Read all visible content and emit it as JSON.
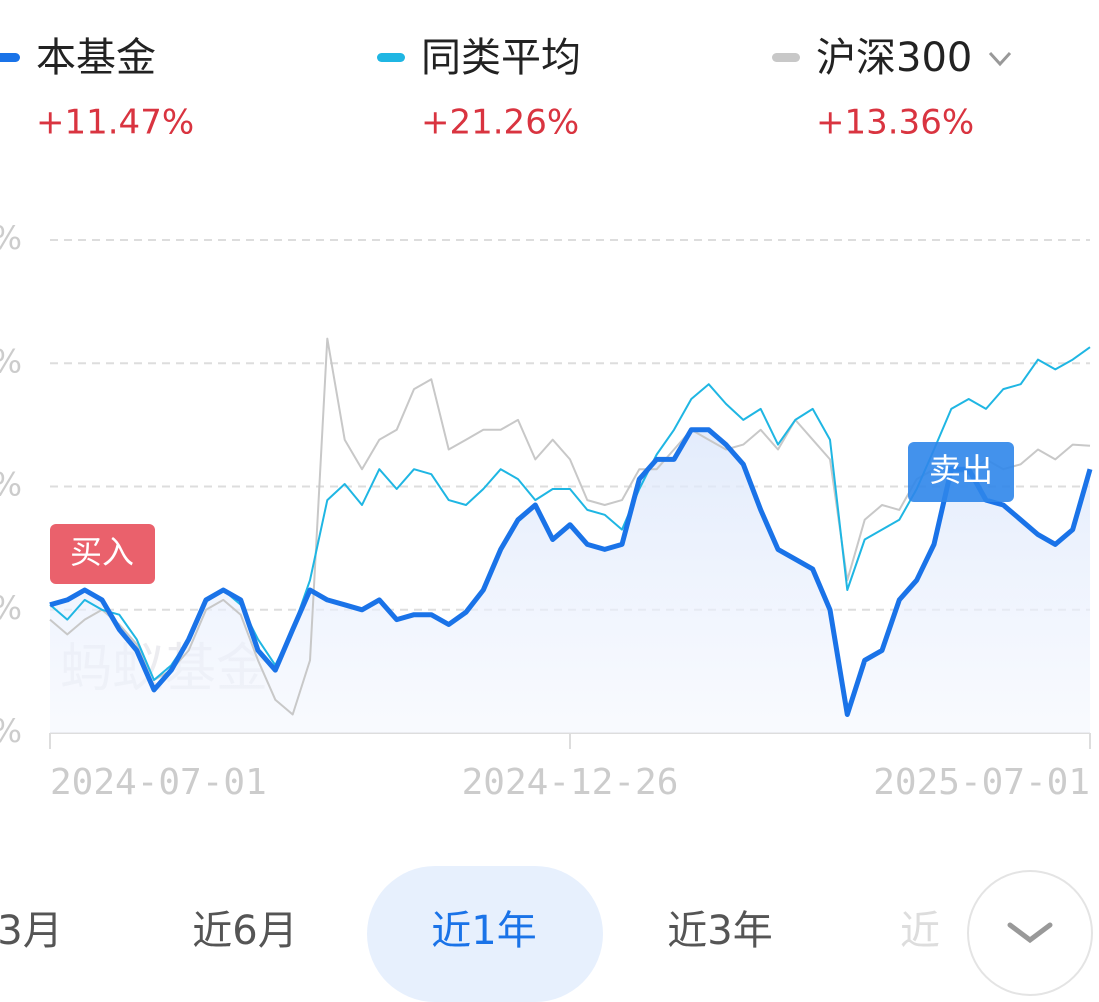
{
  "chart_data": {
    "type": "line",
    "categories": [
      "2024-07-01",
      null,
      null,
      null,
      null,
      null,
      null,
      null,
      null,
      null,
      null,
      null,
      null,
      null,
      null,
      null,
      null,
      null,
      null,
      null,
      null,
      null,
      null,
      null,
      null,
      null,
      null,
      null,
      null,
      null,
      "2024-12-26",
      null,
      null,
      null,
      null,
      null,
      null,
      null,
      null,
      null,
      null,
      null,
      null,
      null,
      null,
      null,
      null,
      null,
      null,
      null,
      null,
      null,
      null,
      null,
      null,
      null,
      null,
      null,
      null,
      null,
      "2025-07-01"
    ],
    "series": [
      {
        "name": "本基金",
        "change": "+11.47%",
        "color": "#1a73e8",
        "values": [
          0.4,
          0.8,
          1.6,
          0.8,
          -1.6,
          -3.3,
          -6.5,
          -4.9,
          -2.4,
          0.8,
          1.6,
          0.8,
          -3.3,
          -4.9,
          -1.6,
          1.6,
          0.8,
          0.4,
          0,
          0.8,
          -0.8,
          -0.4,
          -0.4,
          -1.2,
          -0.2,
          1.6,
          4.9,
          7.3,
          8.5,
          5.7,
          6.9,
          5.3,
          4.9,
          5.3,
          10.6,
          12.2,
          12.2,
          14.6,
          14.6,
          13.4,
          11.8,
          8.1,
          4.9,
          4.1,
          3.3,
          0,
          -8.5,
          -4.1,
          -3.3,
          0.8,
          2.4,
          5.3,
          11.4,
          11.4,
          8.9,
          8.5,
          7.3,
          6.1,
          5.3,
          6.5,
          11.4
        ]
      },
      {
        "name": "同类平均",
        "change": "+21.26%",
        "color": "#1fb6e3",
        "values": [
          0.4,
          -0.8,
          0.8,
          0,
          -0.4,
          -2.4,
          -5.7,
          -4.5,
          -2.4,
          0.8,
          1.6,
          0.4,
          -2.4,
          -4.5,
          -1.6,
          2.4,
          8.9,
          10.2,
          8.5,
          11.4,
          9.8,
          11.4,
          11.0,
          8.9,
          8.5,
          9.8,
          11.4,
          10.6,
          8.9,
          9.8,
          9.8,
          8.1,
          7.7,
          6.5,
          9.8,
          12.6,
          14.6,
          17.1,
          18.3,
          16.7,
          15.4,
          16.3,
          13.4,
          15.4,
          16.3,
          13.8,
          1.6,
          5.7,
          6.5,
          7.3,
          9.8,
          13.0,
          16.3,
          17.1,
          16.3,
          17.9,
          18.3,
          20.3,
          19.5,
          20.3,
          21.3
        ]
      },
      {
        "name": "沪深300",
        "change": "+13.36%",
        "color": "#c8c8c8",
        "values": [
          -0.8,
          -2.0,
          -0.8,
          0,
          -1.2,
          -2.8,
          -5.7,
          -4.9,
          -3.3,
          0,
          0.8,
          -0.4,
          -4.1,
          -7.3,
          -8.5,
          -4.1,
          22.0,
          13.8,
          11.4,
          13.8,
          14.6,
          17.9,
          18.7,
          13.0,
          13.8,
          14.6,
          14.6,
          15.4,
          12.2,
          13.8,
          12.2,
          8.9,
          8.5,
          8.9,
          11.4,
          11.4,
          13.0,
          14.6,
          13.8,
          13.0,
          13.4,
          14.6,
          13.0,
          15.4,
          13.8,
          12.2,
          2.4,
          7.3,
          8.5,
          8.1,
          10.6,
          11.4,
          11.4,
          11.0,
          12.2,
          11.4,
          11.8,
          13.0,
          12.2,
          13.4,
          13.3
        ]
      }
    ],
    "ylim": [
      -10,
      30
    ],
    "yticks": [
      {
        "value": -10,
        "label": "%"
      },
      {
        "value": 0,
        "label": "%"
      },
      {
        "value": 10,
        "label": "%"
      },
      {
        "value": 20,
        "label": "%"
      },
      {
        "value": 30,
        "label": "%"
      }
    ],
    "grid": true,
    "annotations": [
      "买入",
      "卖出"
    ],
    "watermark": "蚂蚁基金"
  },
  "tabs": [
    "3月",
    "近6月",
    "近1年",
    "近3年",
    "近"
  ],
  "active_tab": 2
}
